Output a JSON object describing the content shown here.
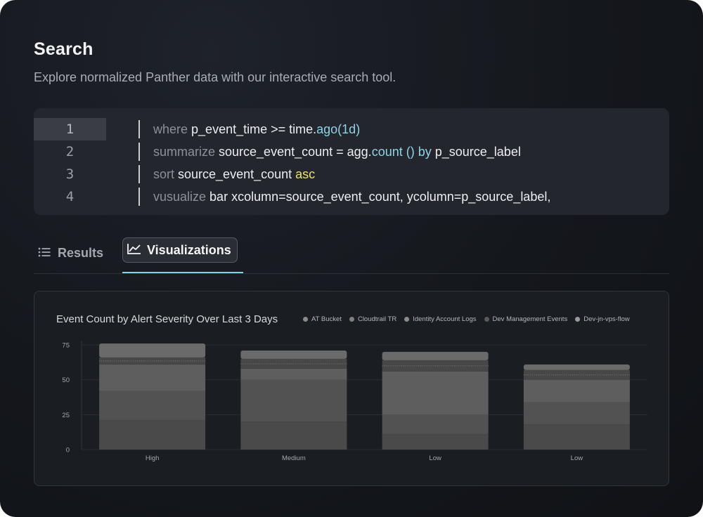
{
  "header": {
    "title": "Search",
    "subtitle": "Explore normalized Panther data with our interactive search tool."
  },
  "editor": {
    "lines": [
      {
        "number": "1",
        "parts": [
          {
            "text": "where ",
            "cls": "kw"
          },
          {
            "text": "p_event_time >= time.",
            "cls": "op"
          },
          {
            "text": "ago(1d)",
            "cls": "fn"
          }
        ]
      },
      {
        "number": "2",
        "parts": [
          {
            "text": "summarize ",
            "cls": "kw"
          },
          {
            "text": "source_event_count = agg.",
            "cls": "op"
          },
          {
            "text": "count () by",
            "cls": "fn"
          },
          {
            "text": " p_source_label",
            "cls": "op"
          }
        ]
      },
      {
        "number": "3",
        "parts": [
          {
            "text": "sort ",
            "cls": "kw"
          },
          {
            "text": "source_event_count ",
            "cls": "op"
          },
          {
            "text": "asc",
            "cls": "hl"
          }
        ]
      },
      {
        "number": "4",
        "parts": [
          {
            "text": "vusualize ",
            "cls": "kw"
          },
          {
            "text": "bar xcolumn=source_event_count, ycolumn=p_source_label,",
            "cls": "op"
          }
        ]
      }
    ]
  },
  "tabs": {
    "results_label": "Results",
    "results_icon": "list-icon",
    "visualizations_label": "Visualizations",
    "visualizations_icon": "line-chart-icon",
    "active": "Visualizations",
    "accent_color": "#7fd6e4"
  },
  "chart_data": {
    "type": "bar",
    "stacked": true,
    "title": "Event Count by Alert Severity Over Last 3 Days",
    "categories": [
      "High",
      "Medium",
      "Low",
      "Low"
    ],
    "ylim": [
      0,
      75
    ],
    "yticks": [
      0,
      25,
      50,
      75
    ],
    "grid": true,
    "legend_position": "top-right",
    "series": [
      {
        "name": "AT Bucket",
        "color": "#4a4a4a",
        "values": [
          21,
          20,
          11,
          18
        ]
      },
      {
        "name": "Cloudtrail TR",
        "color": "#525252",
        "values": [
          21,
          30,
          14,
          16
        ]
      },
      {
        "name": "Identity Account Logs",
        "color": "#5e5e5e",
        "values": [
          19,
          8,
          31,
          16
        ]
      },
      {
        "name": "Dev Management Events",
        "color": "#474747",
        "values": [
          5,
          7,
          8,
          7
        ]
      },
      {
        "name": "Dev-jn-vps-flow",
        "color": "#6a6a6a",
        "values": [
          10,
          6,
          6,
          4
        ]
      }
    ]
  }
}
